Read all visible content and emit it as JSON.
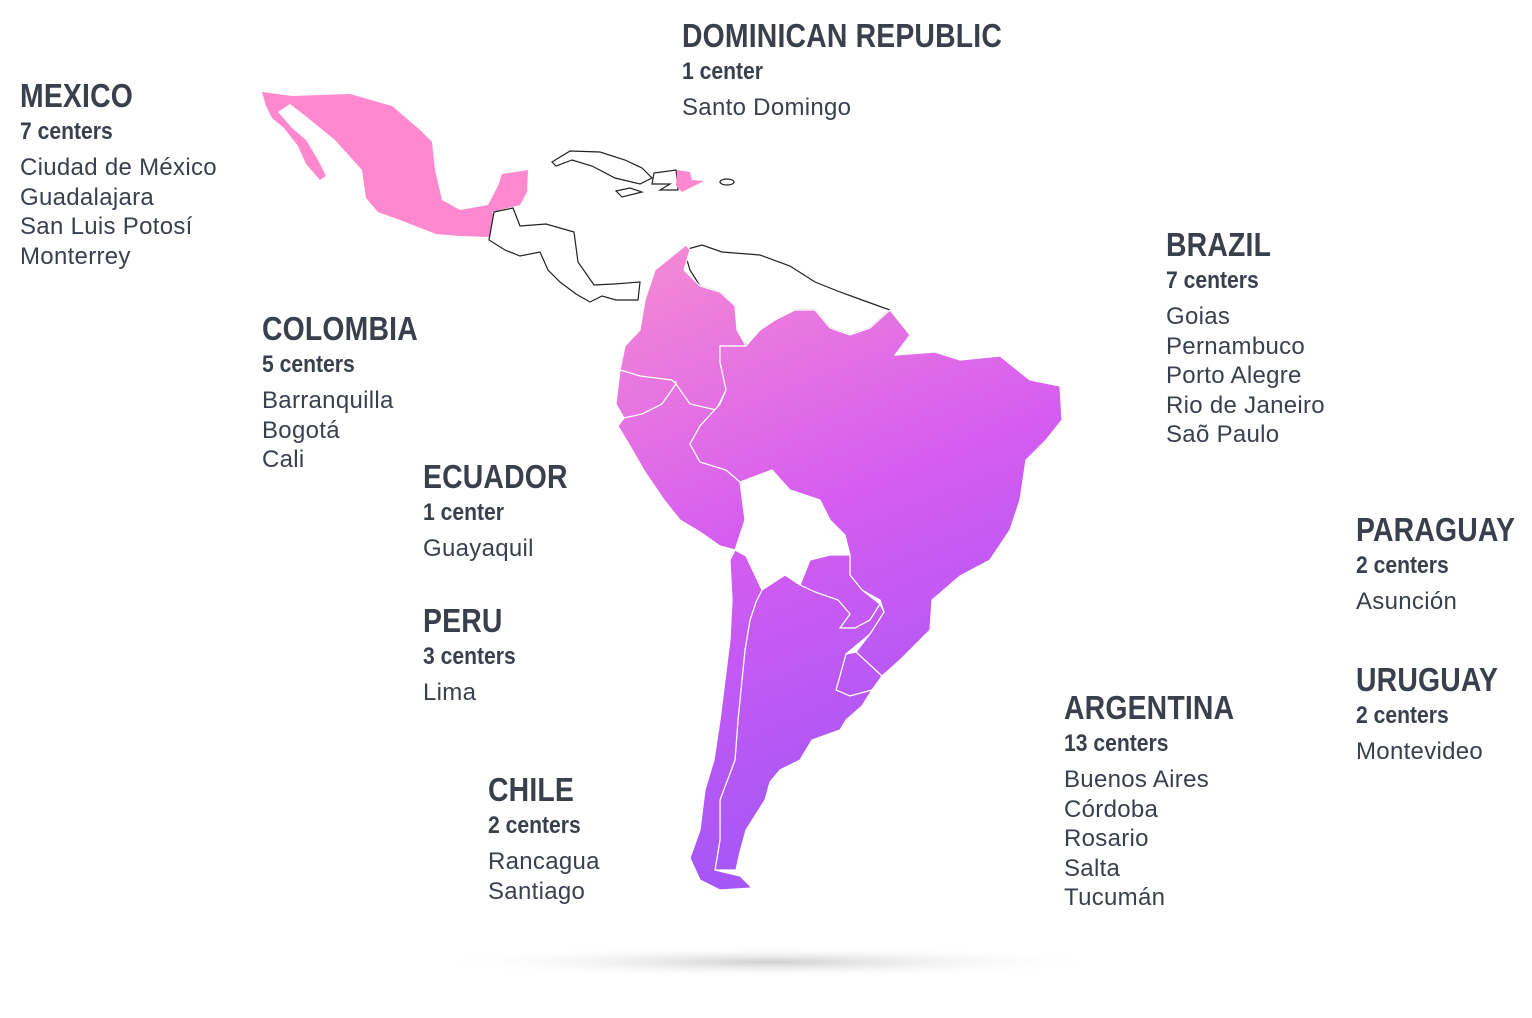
{
  "colors": {
    "highlight_start": "#f58ad3",
    "highlight_mid": "#d45cf1",
    "highlight_end": "#9a55f8",
    "mexico_fill": "#ff88cf",
    "text": "#3a3f4c",
    "unhighlighted_fill": "#ffffff",
    "outline": "#222222"
  },
  "regions": [
    {
      "id": "mexico",
      "name": "MEXICO",
      "count": "7 centers",
      "cities": [
        "Ciudad de México",
        "Guadalajara",
        "San Luis Potosí",
        "Monterrey"
      ]
    },
    {
      "id": "dominican",
      "name": "DOMINICAN REPUBLIC",
      "count": "1 center",
      "cities": [
        "Santo Domingo"
      ]
    },
    {
      "id": "brazil",
      "name": "BRAZIL",
      "count": "7 centers",
      "cities": [
        "Goias",
        "Pernambuco",
        "Porto Alegre",
        "Rio de Janeiro",
        "Saõ Paulo"
      ]
    },
    {
      "id": "colombia",
      "name": "COLOMBIA",
      "count": "5 centers",
      "cities": [
        "Barranquilla",
        "Bogotá",
        "Cali"
      ]
    },
    {
      "id": "ecuador",
      "name": "ECUADOR",
      "count": "1 center",
      "cities": [
        "Guayaquil"
      ]
    },
    {
      "id": "peru",
      "name": "PERU",
      "count": "3 centers",
      "cities": [
        "Lima"
      ]
    },
    {
      "id": "chile",
      "name": "CHILE",
      "count": "2 centers",
      "cities": [
        "Rancagua",
        "Santiago"
      ]
    },
    {
      "id": "argentina",
      "name": "ARGENTINA",
      "count": "13 centers",
      "cities": [
        "Buenos Aires",
        "Córdoba",
        "Rosario",
        "Salta",
        "Tucumán"
      ]
    },
    {
      "id": "paraguay",
      "name": "PARAGUAY",
      "count": "2 centers",
      "cities": [
        "Asunción"
      ]
    },
    {
      "id": "uruguay",
      "name": "URUGUAY",
      "count": "2 centers",
      "cities": [
        "Montevideo"
      ]
    }
  ]
}
